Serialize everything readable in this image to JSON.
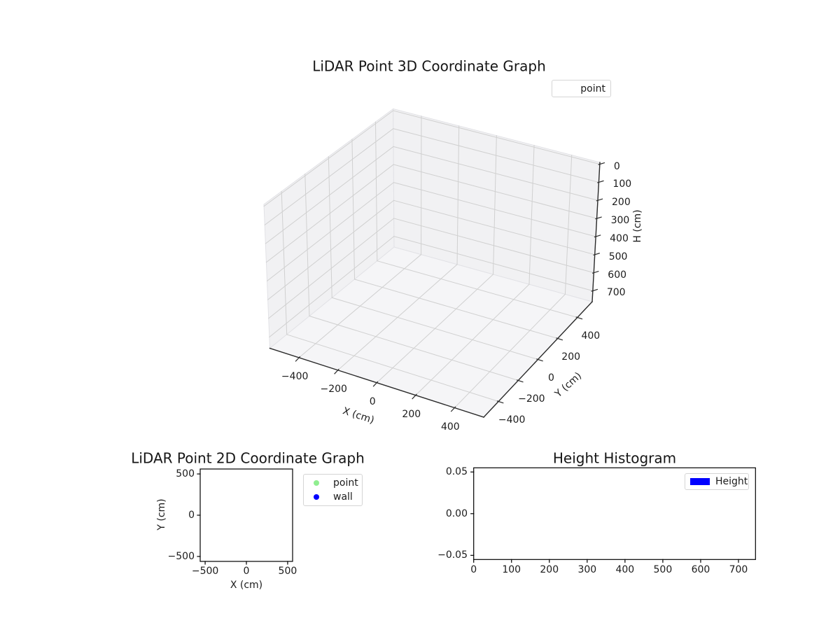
{
  "figure": {
    "background": "#ffffff"
  },
  "colors": {
    "pane_wall": "#f1f1f3",
    "pane_floor": "#f5f5f7",
    "pane_edge": "#e2e2e6",
    "grid": "#d0d0d0",
    "axis_line": "#2a2a2a",
    "spine": "#000000",
    "text": "#1b1b1b",
    "point_green": "#90ee90",
    "wall_blue": "#0000ff",
    "height_blue": "#0000ff"
  },
  "chart_data": [
    {
      "id": "plot3d",
      "type": "scatter3d",
      "title": "LiDAR Point 3D Coordinate Graph",
      "xlabel": "X (cm)",
      "ylabel": "Y (cm)",
      "zlabel": "H (cm)",
      "xlim": [
        -550,
        550
      ],
      "ylim": [
        -550,
        550
      ],
      "zlim": [
        -10,
        760
      ],
      "zaxis_inverted": true,
      "grid": true,
      "xticks": {
        "values": [
          -400,
          -200,
          0,
          200,
          400
        ],
        "labels": [
          "−400",
          "−200",
          "0",
          "200",
          "400"
        ]
      },
      "yticks": {
        "values": [
          -400,
          -200,
          0,
          200,
          400
        ],
        "labels": [
          "−400",
          "−200",
          "0",
          "200",
          "400"
        ]
      },
      "zticks": {
        "values": [
          0,
          100,
          200,
          300,
          400,
          500,
          600,
          700
        ],
        "labels": [
          "0",
          "100",
          "200",
          "300",
          "400",
          "500",
          "600",
          "700"
        ]
      },
      "legend": {
        "location": "upper right",
        "entries": [
          {
            "label": "point",
            "marker": "none",
            "color": null
          }
        ]
      },
      "series": [
        {
          "name": "point",
          "points": []
        }
      ]
    },
    {
      "id": "plot2d",
      "type": "scatter",
      "title": "LiDAR Point 2D Coordinate Graph",
      "xlabel": "X (cm)",
      "ylabel": "Y (cm)",
      "xlim": [
        -560,
        560
      ],
      "ylim": [
        -560,
        560
      ],
      "grid": false,
      "xticks": {
        "values": [
          -500,
          0,
          500
        ],
        "labels": [
          "−500",
          "0",
          "500"
        ]
      },
      "yticks": {
        "values": [
          500,
          0,
          -500
        ],
        "labels": [
          "500",
          "0",
          "−500"
        ]
      },
      "legend": {
        "location": "outside right",
        "entries": [
          {
            "label": "point",
            "marker": "circle",
            "color": "#90ee90"
          },
          {
            "label": "wall",
            "marker": "circle",
            "color": "#0000ff"
          }
        ]
      },
      "series": [
        {
          "name": "point",
          "points": []
        },
        {
          "name": "wall",
          "points": []
        }
      ]
    },
    {
      "id": "histogram",
      "type": "bar",
      "title": "Height Histogram",
      "xlabel": "",
      "ylabel": "",
      "xlim": [
        0,
        745
      ],
      "ylim": [
        -0.055,
        0.055
      ],
      "grid": false,
      "xticks": {
        "values": [
          0,
          100,
          200,
          300,
          400,
          500,
          600,
          700
        ],
        "labels": [
          "0",
          "100",
          "200",
          "300",
          "400",
          "500",
          "600",
          "700"
        ]
      },
      "yticks": {
        "values": [
          0.05,
          0,
          -0.05
        ],
        "labels": [
          "0.05",
          "0.00",
          "−0.05"
        ]
      },
      "legend": {
        "location": "upper right",
        "entries": [
          {
            "label": "Height",
            "marker": "rect",
            "color": "#0000ff"
          }
        ]
      },
      "values": []
    }
  ]
}
